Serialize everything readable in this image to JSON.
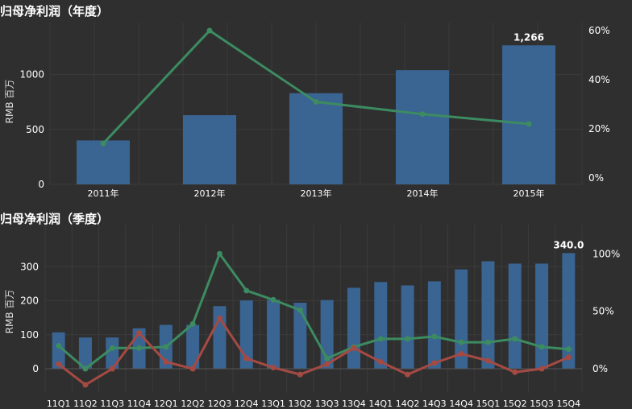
{
  "chart_data": [
    {
      "type": "bar",
      "title": "归母净利润（年度）",
      "ylabel": "RMB 百万",
      "ylim": [
        0,
        1400
      ],
      "yticks": [
        0,
        500,
        1000
      ],
      "y2ticks": [
        "0%",
        "20%",
        "40%",
        "60%"
      ],
      "y2lim": [
        0,
        0.6
      ],
      "categories": [
        "2011年",
        "2012年",
        "2013年",
        "2014年",
        "2015年"
      ],
      "bars": {
        "values": [
          400,
          630,
          830,
          1040,
          1266
        ],
        "color": "#3a6491"
      },
      "line": {
        "values": [
          0.14,
          0.6,
          0.31,
          0.26,
          0.22
        ],
        "color": "#3c8b61"
      },
      "data_labels": [
        {
          "index": 4,
          "text": "1,266"
        }
      ],
      "grid": true
    },
    {
      "type": "bar",
      "title": "归母净利润（季度）",
      "ylabel": "RMB 百万",
      "ylim": [
        -55,
        400
      ],
      "yticks": [
        0,
        100,
        200,
        300
      ],
      "y2ticks": [
        "0%",
        "50%",
        "100%"
      ],
      "y2lim": [
        -0.15,
        1.1
      ],
      "categories": [
        "11Q1",
        "11Q2",
        "11Q3",
        "11Q4",
        "12Q1",
        "12Q2",
        "12Q3",
        "12Q4",
        "13Q1",
        "13Q2",
        "13Q3",
        "13Q4",
        "14Q1",
        "14Q2",
        "14Q3",
        "14Q4",
        "15Q1",
        "15Q2",
        "15Q3",
        "15Q4"
      ],
      "bars": {
        "values": [
          107,
          92,
          92,
          119,
          129,
          129,
          184,
          201,
          203,
          194,
          202,
          238,
          255,
          245,
          257,
          292,
          316,
          309,
          309,
          340
        ],
        "color": "#3a6491"
      },
      "lines": [
        {
          "values": [
            0.2,
            0.0,
            0.18,
            0.18,
            0.19,
            0.39,
            1.0,
            0.68,
            0.6,
            0.51,
            0.09,
            0.19,
            0.26,
            0.26,
            0.28,
            0.23,
            0.23,
            0.26,
            0.19,
            0.17
          ],
          "color": "#3c8b61"
        },
        {
          "values": [
            0.04,
            -0.14,
            0.0,
            0.31,
            0.06,
            0.0,
            0.44,
            0.09,
            0.01,
            -0.05,
            0.04,
            0.18,
            0.06,
            -0.05,
            0.05,
            0.13,
            0.07,
            -0.03,
            0.0,
            0.1
          ],
          "color": "#a54a43"
        }
      ],
      "data_labels": [
        {
          "index": 19,
          "text": "340.0"
        }
      ],
      "grid": true
    }
  ]
}
